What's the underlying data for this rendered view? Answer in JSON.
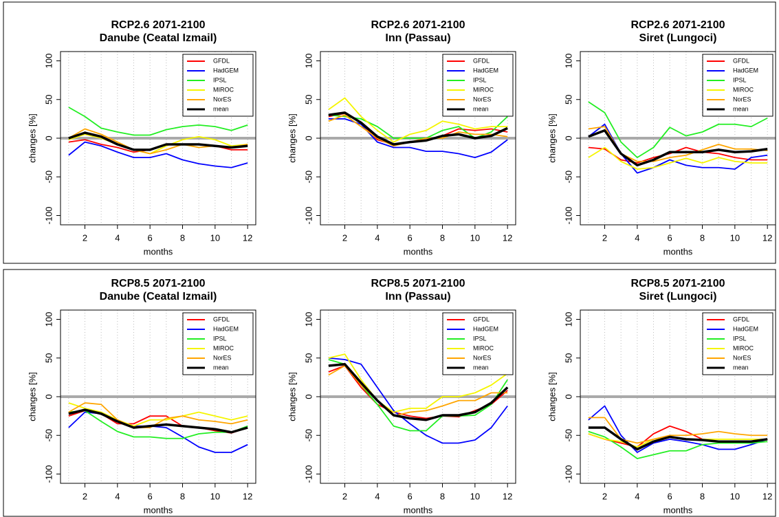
{
  "chart_data": [
    {
      "type": "line",
      "title": "RCP2.6 2071-2100",
      "subtitle": "Danube (Ceatal Izmail)",
      "xlabel": "months",
      "ylabel": "changes [%]",
      "x": [
        1,
        2,
        3,
        4,
        5,
        6,
        7,
        8,
        9,
        10,
        11,
        12
      ],
      "xlim": [
        0.5,
        12.5
      ],
      "ylim": [
        -112,
        112
      ],
      "xticks": [
        2,
        4,
        6,
        8,
        10,
        12
      ],
      "yticks": [
        -100,
        -50,
        0,
        50,
        100
      ],
      "grid": true,
      "legend": "upper right",
      "reference_line": 0,
      "series": [
        {
          "name": "GFDL",
          "color": "#ff0000",
          "values": [
            -5,
            -2,
            -8,
            -12,
            -18,
            -15,
            -8,
            -8,
            -8,
            -10,
            -15,
            -15
          ]
        },
        {
          "name": "HadGEM",
          "color": "#0000ff",
          "values": [
            -22,
            -5,
            -10,
            -18,
            -25,
            -25,
            -20,
            -28,
            -33,
            -36,
            -38,
            -32
          ]
        },
        {
          "name": "IPSL",
          "color": "#22ee22",
          "values": [
            40,
            28,
            13,
            8,
            4,
            4,
            11,
            15,
            17,
            15,
            10,
            17
          ]
        },
        {
          "name": "MIROC",
          "color": "#f5f500",
          "values": [
            -2,
            5,
            0,
            -8,
            -15,
            -20,
            -10,
            -2,
            2,
            -2,
            -10,
            -8
          ]
        },
        {
          "name": "NorES",
          "color": "#ffa500",
          "values": [
            0,
            12,
            5,
            -5,
            -15,
            -20,
            -15,
            -8,
            -12,
            -10,
            -12,
            -8
          ]
        },
        {
          "name": "mean",
          "color": "#000000",
          "values": [
            0,
            7,
            2,
            -8,
            -15,
            -15,
            -8,
            -8,
            -8,
            -10,
            -12,
            -10
          ]
        }
      ]
    },
    {
      "type": "line",
      "title": "RCP2.6 2071-2100",
      "subtitle": "Inn (Passau)",
      "xlabel": "months",
      "ylabel": "changes [%]",
      "x": [
        1,
        2,
        3,
        4,
        5,
        6,
        7,
        8,
        9,
        10,
        11,
        12
      ],
      "xlim": [
        0.5,
        12.5
      ],
      "ylim": [
        -112,
        112
      ],
      "xticks": [
        2,
        4,
        6,
        8,
        10,
        12
      ],
      "yticks": [
        -100,
        -50,
        0,
        50,
        100
      ],
      "grid": true,
      "legend": "upper right",
      "reference_line": 0,
      "series": [
        {
          "name": "GFDL",
          "color": "#ff0000",
          "values": [
            28,
            32,
            20,
            -2,
            -8,
            -5,
            -3,
            3,
            12,
            10,
            12,
            8
          ]
        },
        {
          "name": "HadGEM",
          "color": "#0000ff",
          "values": [
            25,
            25,
            18,
            -5,
            -12,
            -12,
            -17,
            -17,
            -20,
            -25,
            -18,
            -2
          ]
        },
        {
          "name": "IPSL",
          "color": "#22ee22",
          "values": [
            30,
            28,
            25,
            15,
            0,
            0,
            0,
            10,
            15,
            0,
            8,
            28
          ]
        },
        {
          "name": "MIROC",
          "color": "#f5f500",
          "values": [
            37,
            52,
            28,
            10,
            -5,
            5,
            10,
            22,
            18,
            12,
            15,
            15
          ]
        },
        {
          "name": "NorES",
          "color": "#ffa500",
          "values": [
            22,
            30,
            15,
            0,
            -10,
            -5,
            0,
            0,
            8,
            5,
            5,
            2
          ]
        },
        {
          "name": "mean",
          "color": "#000000",
          "values": [
            30,
            33,
            20,
            2,
            -8,
            -5,
            -3,
            3,
            5,
            0,
            3,
            13
          ]
        }
      ]
    },
    {
      "type": "line",
      "title": "RCP2.6 2071-2100",
      "subtitle": "Siret (Lungoci)",
      "xlabel": "months",
      "ylabel": "changes [%]",
      "x": [
        1,
        2,
        3,
        4,
        5,
        6,
        7,
        8,
        9,
        10,
        11,
        12
      ],
      "xlim": [
        0.5,
        12.5
      ],
      "ylim": [
        -112,
        112
      ],
      "xticks": [
        2,
        4,
        6,
        8,
        10,
        12
      ],
      "yticks": [
        -100,
        -50,
        0,
        50,
        100
      ],
      "grid": true,
      "legend": "upper right",
      "reference_line": 0,
      "series": [
        {
          "name": "GFDL",
          "color": "#ff0000",
          "values": [
            -12,
            -14,
            -28,
            -32,
            -25,
            -20,
            -12,
            -18,
            -20,
            -25,
            -28,
            -28
          ]
        },
        {
          "name": "HadGEM",
          "color": "#0000ff",
          "values": [
            2,
            18,
            -20,
            -45,
            -38,
            -28,
            -35,
            -38,
            -38,
            -40,
            -25,
            -22
          ]
        },
        {
          "name": "IPSL",
          "color": "#22ee22",
          "values": [
            47,
            33,
            -5,
            -25,
            -12,
            14,
            3,
            8,
            18,
            18,
            15,
            26
          ]
        },
        {
          "name": "MIROC",
          "color": "#f5f500",
          "values": [
            -25,
            -12,
            -30,
            -40,
            -38,
            -32,
            -26,
            -32,
            -25,
            -30,
            -32,
            -32
          ]
        },
        {
          "name": "NorES",
          "color": "#ffa500",
          "values": [
            12,
            15,
            -20,
            -30,
            -30,
            -25,
            -22,
            -15,
            -8,
            -14,
            -14,
            -16
          ]
        },
        {
          "name": "mean",
          "color": "#000000",
          "values": [
            2,
            10,
            -20,
            -35,
            -28,
            -18,
            -18,
            -18,
            -15,
            -18,
            -17,
            -14
          ]
        }
      ]
    },
    {
      "type": "line",
      "title": "RCP8.5 2071-2100",
      "subtitle": "Danube (Ceatal Izmail)",
      "xlabel": "months",
      "ylabel": "changes [%]",
      "x": [
        1,
        2,
        3,
        4,
        5,
        6,
        7,
        8,
        9,
        10,
        11,
        12
      ],
      "xlim": [
        0.5,
        12.5
      ],
      "ylim": [
        -112,
        112
      ],
      "xticks": [
        2,
        4,
        6,
        8,
        10,
        12
      ],
      "yticks": [
        -100,
        -50,
        0,
        50,
        100
      ],
      "grid": true,
      "legend": "upper right",
      "reference_line": 0,
      "series": [
        {
          "name": "GFDL",
          "color": "#ff0000",
          "values": [
            -25,
            -18,
            -22,
            -35,
            -35,
            -25,
            -25,
            -38,
            -40,
            -44,
            -47,
            -40
          ]
        },
        {
          "name": "HadGEM",
          "color": "#0000ff",
          "values": [
            -40,
            -20,
            -22,
            -32,
            -38,
            -38,
            -40,
            -52,
            -65,
            -72,
            -72,
            -62
          ]
        },
        {
          "name": "IPSL",
          "color": "#22ee22",
          "values": [
            -20,
            -18,
            -32,
            -45,
            -52,
            -52,
            -54,
            -54,
            -48,
            -46,
            -46,
            -38
          ]
        },
        {
          "name": "MIROC",
          "color": "#f5f500",
          "values": [
            -8,
            -15,
            -20,
            -30,
            -38,
            -30,
            -30,
            -25,
            -20,
            -25,
            -30,
            -25
          ]
        },
        {
          "name": "NorES",
          "color": "#ffa500",
          "values": [
            -20,
            -8,
            -10,
            -30,
            -40,
            -40,
            -28,
            -25,
            -30,
            -32,
            -35,
            -30
          ]
        },
        {
          "name": "mean",
          "color": "#000000",
          "values": [
            -22,
            -17,
            -22,
            -32,
            -40,
            -38,
            -36,
            -38,
            -40,
            -42,
            -46,
            -40
          ]
        }
      ]
    },
    {
      "type": "line",
      "title": "RCP8.5 2071-2100",
      "subtitle": "Inn (Passau)",
      "xlabel": "months",
      "ylabel": "changes [%]",
      "x": [
        1,
        2,
        3,
        4,
        5,
        6,
        7,
        8,
        9,
        10,
        11,
        12
      ],
      "xlim": [
        0.5,
        12.5
      ],
      "ylim": [
        -112,
        112
      ],
      "xticks": [
        2,
        4,
        6,
        8,
        10,
        12
      ],
      "yticks": [
        -100,
        -50,
        0,
        50,
        100
      ],
      "grid": true,
      "legend": "upper right",
      "reference_line": 0,
      "series": [
        {
          "name": "GFDL",
          "color": "#ff0000",
          "values": [
            32,
            40,
            12,
            -10,
            -20,
            -25,
            -28,
            -25,
            -26,
            -18,
            -10,
            8
          ]
        },
        {
          "name": "HadGEM",
          "color": "#0000ff",
          "values": [
            50,
            48,
            42,
            12,
            -18,
            -35,
            -50,
            -60,
            -60,
            -56,
            -40,
            -12
          ]
        },
        {
          "name": "IPSL",
          "color": "#22ee22",
          "values": [
            48,
            42,
            15,
            -10,
            -38,
            -44,
            -44,
            -25,
            -25,
            -24,
            -10,
            22
          ]
        },
        {
          "name": "MIROC",
          "color": "#f5f500",
          "values": [
            50,
            55,
            22,
            -5,
            -20,
            -15,
            -15,
            0,
            0,
            5,
            15,
            30
          ]
        },
        {
          "name": "NorES",
          "color": "#ffa500",
          "values": [
            28,
            40,
            15,
            -5,
            -25,
            -20,
            -18,
            -12,
            -5,
            -5,
            5,
            5
          ]
        },
        {
          "name": "mean",
          "color": "#000000",
          "values": [
            40,
            42,
            18,
            -5,
            -24,
            -28,
            -30,
            -24,
            -24,
            -20,
            -8,
            12
          ]
        }
      ]
    },
    {
      "type": "line",
      "title": "RCP8.5 2071-2100",
      "subtitle": "Siret (Lungoci)",
      "xlabel": "months",
      "ylabel": "changes [%]",
      "x": [
        1,
        2,
        3,
        4,
        5,
        6,
        7,
        8,
        9,
        10,
        11,
        12
      ],
      "xlim": [
        0.5,
        12.5
      ],
      "ylim": [
        -112,
        112
      ],
      "xticks": [
        2,
        4,
        6,
        8,
        10,
        12
      ],
      "yticks": [
        -100,
        -50,
        0,
        50,
        100
      ],
      "grid": true,
      "legend": "upper right",
      "reference_line": 0,
      "series": [
        {
          "name": "GFDL",
          "color": "#ff0000",
          "values": [
            -48,
            -55,
            -60,
            -65,
            -48,
            -38,
            -45,
            -55,
            -58,
            -58,
            -60,
            -55
          ]
        },
        {
          "name": "HadGEM",
          "color": "#0000ff",
          "values": [
            -30,
            -12,
            -50,
            -72,
            -60,
            -55,
            -58,
            -62,
            -68,
            -68,
            -62,
            -55
          ]
        },
        {
          "name": "IPSL",
          "color": "#22ee22",
          "values": [
            -45,
            -52,
            -65,
            -80,
            -75,
            -70,
            -70,
            -62,
            -60,
            -60,
            -60,
            -58
          ]
        },
        {
          "name": "MIROC",
          "color": "#f5f500",
          "values": [
            -48,
            -55,
            -58,
            -65,
            -55,
            -52,
            -55,
            -55,
            -55,
            -55,
            -55,
            -55
          ]
        },
        {
          "name": "NorES",
          "color": "#ffa500",
          "values": [
            -27,
            -27,
            -55,
            -60,
            -55,
            -50,
            -50,
            -48,
            -45,
            -48,
            -50,
            -50
          ]
        },
        {
          "name": "mean",
          "color": "#000000",
          "values": [
            -40,
            -40,
            -55,
            -68,
            -58,
            -52,
            -55,
            -56,
            -58,
            -58,
            -58,
            -55
          ]
        }
      ]
    }
  ]
}
